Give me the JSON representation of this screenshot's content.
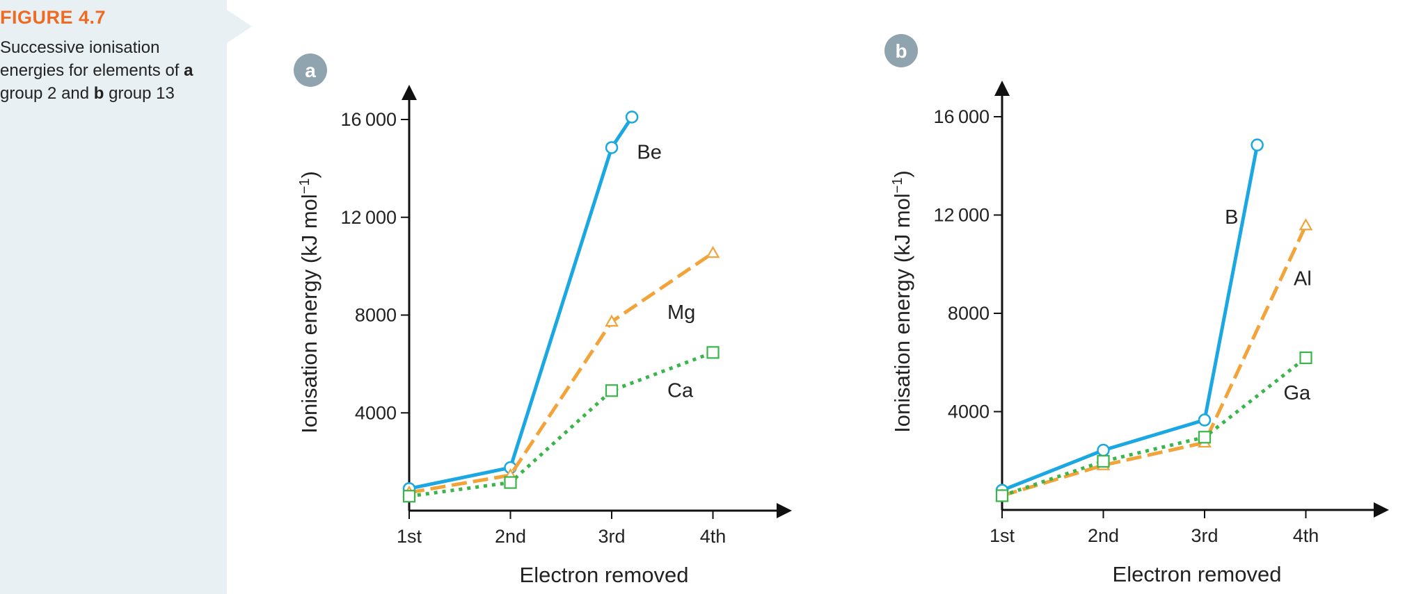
{
  "figure": {
    "label": "FIGURE 4.7",
    "caption_pre": "Successive ionisation energies for elements of ",
    "caption_a": "a",
    "caption_mid": " group 2 and ",
    "caption_b": "b",
    "caption_post": " group 13"
  },
  "colors": {
    "sidebar_bg": "#e9f0f3",
    "label_orange": "#ee6b24",
    "badge_gray": "#8fa4ae",
    "blue": "#1aa7e2",
    "orange": "#f2a33a",
    "green": "#3ab54a"
  },
  "chart_data": [
    {
      "type": "line",
      "panel_label": "a",
      "xlabel": "Electron removed",
      "ylabel": "Ionisation energy (kJ mol−1)",
      "ylabel_main": "Ionisation energy (kJ mol",
      "ylabel_sup": "−1",
      "ylabel_close": ")",
      "categories": [
        "1st",
        "2nd",
        "3rd",
        "4th"
      ],
      "yticks": [
        4000,
        8000,
        12000,
        16000
      ],
      "ytick_labels": [
        "4000",
        "8000",
        "12 000",
        "16 000"
      ],
      "ylim": [
        0,
        17000
      ],
      "series": [
        {
          "name": "Be",
          "style": "solid",
          "marker": "circle",
          "color": "#1aa7e2",
          "x": [
            1,
            2,
            3,
            3.2
          ],
          "y": [
            900,
            1760,
            14850,
            16100
          ],
          "label_pos": [
            3.25,
            14400
          ]
        },
        {
          "name": "Mg",
          "style": "dashed",
          "marker": "triangle",
          "color": "#f2a33a",
          "x": [
            1,
            2,
            3,
            4
          ],
          "y": [
            740,
            1450,
            7730,
            10540
          ],
          "label_pos": [
            3.55,
            7850
          ]
        },
        {
          "name": "Ca",
          "style": "dotted",
          "marker": "square",
          "color": "#3ab54a",
          "x": [
            1,
            2,
            3,
            4
          ],
          "y": [
            590,
            1150,
            4910,
            6470
          ],
          "label_pos": [
            3.55,
            4650
          ]
        }
      ]
    },
    {
      "type": "line",
      "panel_label": "b",
      "xlabel": "Electron removed",
      "ylabel": "Ionisation energy (kJ mol−1)",
      "ylabel_main": "Ionisation energy (kJ mol",
      "ylabel_sup": "−1",
      "ylabel_close": ")",
      "categories": [
        "1st",
        "2nd",
        "3rd",
        "4th"
      ],
      "yticks": [
        4000,
        8000,
        12000,
        16000
      ],
      "ytick_labels": [
        "4000",
        "8000",
        "12 000",
        "16 000"
      ],
      "ylim": [
        0,
        17000
      ],
      "series": [
        {
          "name": "B",
          "style": "solid",
          "marker": "circle",
          "color": "#1aa7e2",
          "x": [
            1,
            2,
            3,
            3.52
          ],
          "y": [
            800,
            2430,
            3660,
            14850
          ],
          "label_pos": [
            3.2,
            11650
          ]
        },
        {
          "name": "Al",
          "style": "dashed",
          "marker": "triangle",
          "color": "#f2a33a",
          "x": [
            1,
            2,
            3,
            4
          ],
          "y": [
            580,
            1820,
            2740,
            11580
          ],
          "label_pos": [
            3.88,
            9150
          ]
        },
        {
          "name": "Ga",
          "style": "dotted",
          "marker": "square",
          "color": "#3ab54a",
          "x": [
            1,
            2,
            3,
            4
          ],
          "y": [
            580,
            1980,
            2960,
            6190
          ],
          "label_pos": [
            3.78,
            4500
          ]
        }
      ]
    }
  ]
}
